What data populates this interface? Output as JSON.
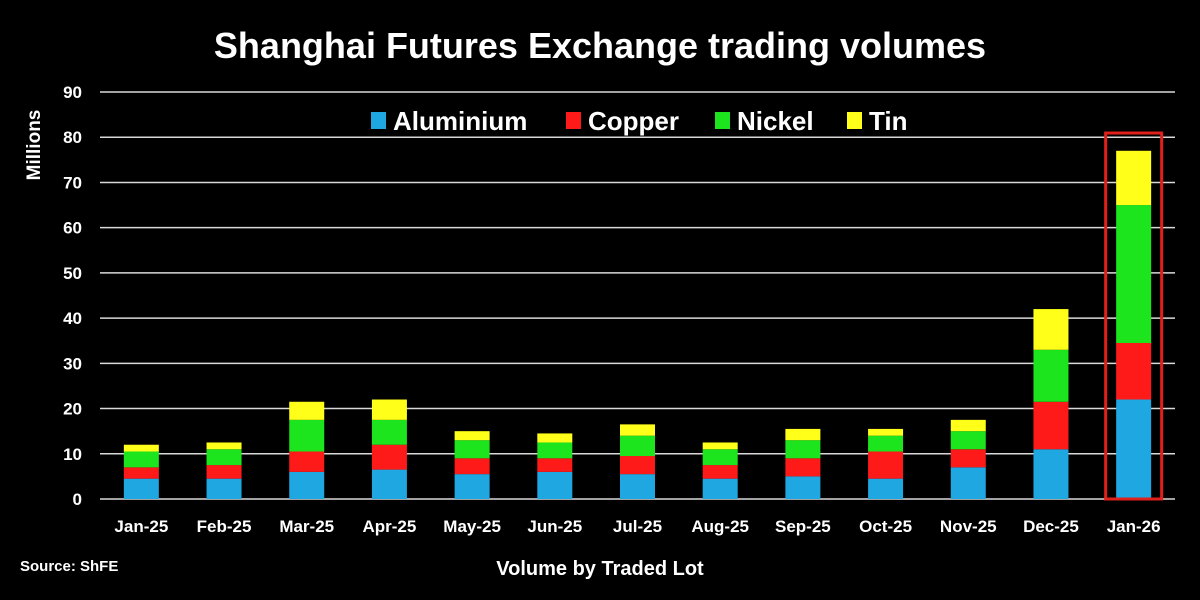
{
  "chart_data": {
    "type": "bar",
    "stacked": true,
    "title": "Shanghai Futures Exchange trading volumes",
    "xlabel": "Volume by Traded Lot",
    "ylabel": "Millions",
    "source": "Source: ShFE",
    "ylim": [
      0,
      90
    ],
    "yticks": [
      0,
      10,
      20,
      30,
      40,
      50,
      60,
      70,
      80,
      90
    ],
    "grid": true,
    "legend_position": "top-center",
    "highlighted_category": "Jan-26",
    "highlight_color": "#e0201b",
    "categories": [
      "Jan-25",
      "Feb-25",
      "Mar-25",
      "Apr-25",
      "May-25",
      "Jun-25",
      "Jul-25",
      "Aug-25",
      "Sep-25",
      "Oct-25",
      "Nov-25",
      "Dec-25",
      "Jan-26"
    ],
    "series": [
      {
        "name": "Aluminium",
        "color": "#1ea7e1",
        "values": [
          4.5,
          4.5,
          6,
          6.5,
          5.5,
          6,
          5.5,
          4.5,
          5,
          4.5,
          7,
          11,
          22
        ]
      },
      {
        "name": "Copper",
        "color": "#ff1a1a",
        "values": [
          2.5,
          3,
          4.5,
          5.5,
          3.5,
          3,
          4,
          3,
          4,
          6,
          4,
          10.5,
          12.5
        ]
      },
      {
        "name": "Nickel",
        "color": "#1de51d",
        "values": [
          3.5,
          3.5,
          7,
          5.5,
          4,
          3.5,
          4.5,
          3.5,
          4,
          3.5,
          4,
          11.5,
          30.5
        ]
      },
      {
        "name": "Tin",
        "color": "#ffff19",
        "values": [
          1.5,
          1.5,
          4,
          4.5,
          2,
          2,
          2.5,
          1.5,
          2.5,
          1.5,
          2.5,
          9,
          12
        ]
      }
    ]
  }
}
